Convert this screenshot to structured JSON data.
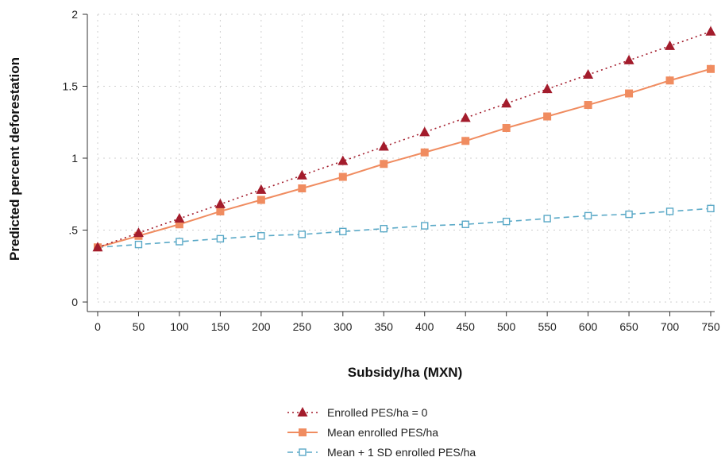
{
  "chart_data": {
    "type": "line",
    "xlabel": "Subsidy/ha (MXN)",
    "ylabel": "Predicted percent deforestation",
    "xlim": [
      0,
      750
    ],
    "ylim": [
      0,
      2
    ],
    "x": [
      0,
      50,
      100,
      150,
      200,
      250,
      300,
      350,
      400,
      450,
      500,
      550,
      600,
      650,
      700,
      750
    ],
    "x_tick_labels": [
      "0",
      "50",
      "100",
      "150",
      "200",
      "250",
      "300",
      "350",
      "400",
      "450",
      "500",
      "550",
      "600",
      "650",
      "700",
      "750"
    ],
    "y_ticks": [
      0,
      0.5,
      1,
      1.5,
      2
    ],
    "y_tick_labels": [
      "0",
      ".5",
      "1",
      "1.5",
      "2"
    ],
    "grid": true,
    "legend_position": "bottom",
    "series": [
      {
        "name": "Enrolled PES/ha = 0",
        "color": "#a31c2c",
        "marker": "triangle",
        "line_style": "dotted",
        "values": [
          0.38,
          0.48,
          0.58,
          0.68,
          0.78,
          0.88,
          0.98,
          1.08,
          1.18,
          1.28,
          1.38,
          1.48,
          1.58,
          1.68,
          1.78,
          1.88
        ]
      },
      {
        "name": "Mean enrolled PES/ha",
        "color": "#f08c60",
        "marker": "square",
        "line_style": "solid",
        "values": [
          0.38,
          0.46,
          0.54,
          0.63,
          0.71,
          0.79,
          0.87,
          0.96,
          1.04,
          1.12,
          1.21,
          1.29,
          1.37,
          1.45,
          1.54,
          1.62
        ]
      },
      {
        "name": "Mean + 1 SD enrolled PES/ha",
        "color": "#5aa9c7",
        "marker": "hollow-square",
        "line_style": "dashed",
        "values": [
          0.38,
          0.4,
          0.42,
          0.44,
          0.46,
          0.47,
          0.49,
          0.51,
          0.53,
          0.54,
          0.56,
          0.58,
          0.6,
          0.61,
          0.63,
          0.65
        ]
      }
    ]
  }
}
